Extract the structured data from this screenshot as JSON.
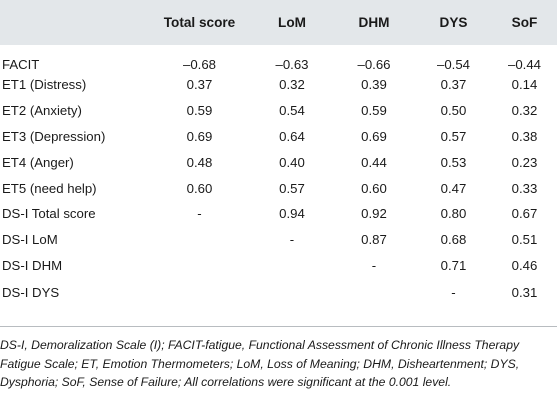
{
  "table": {
    "headers": [
      "",
      "Total score",
      "LoM",
      "DHM",
      "DYS",
      "SoF"
    ],
    "rows": [
      {
        "label": "FACIT",
        "cells": [
          "–0.68",
          "–0.63",
          "–0.66",
          "–0.54",
          "–0.44"
        ]
      },
      {
        "label": "ET1 (Distress)",
        "cells": [
          "0.37",
          "0.32",
          "0.39",
          "0.37",
          "0.14"
        ]
      },
      {
        "label": "ET2 (Anxiety)",
        "cells": [
          "0.59",
          "0.54",
          "0.59",
          "0.50",
          "0.32"
        ]
      },
      {
        "label": "ET3 (Depression)",
        "cells": [
          "0.69",
          "0.64",
          "0.69",
          "0.57",
          "0.38"
        ]
      },
      {
        "label": "ET4 (Anger)",
        "cells": [
          "0.48",
          "0.40",
          "0.44",
          "0.53",
          "0.23"
        ]
      },
      {
        "label": "ET5 (need help)",
        "cells": [
          "0.60",
          "0.57",
          "0.60",
          "0.47",
          "0.33"
        ]
      },
      {
        "label": "DS-I Total score",
        "cells": [
          "-",
          "0.94",
          "0.92",
          "0.80",
          "0.67"
        ]
      },
      {
        "label": "DS-I LoM",
        "cells": [
          "",
          "-",
          "0.87",
          "0.68",
          "0.51"
        ]
      },
      {
        "label": "DS-I DHM",
        "cells": [
          "",
          "",
          "-",
          "0.71",
          "0.46"
        ]
      },
      {
        "label": "DS-I DYS",
        "cells": [
          "",
          "",
          "",
          "-",
          "0.31"
        ]
      }
    ]
  },
  "footnote": "DS-I, Demoralization Scale (I); FACIT-fatigue, Functional Assessment of Chronic Illness Therapy Fatigue Scale; ET, Emotion Thermometers; LoM, Loss of Meaning; DHM, Disheartenment; DYS, Dysphoria; SoF, Sense of Failure; All correlations were significant at the 0.001 level.",
  "colors": {
    "header_background": "#e3e7ea",
    "text": "#1a1a1a",
    "rule": "#b8bcc0"
  }
}
